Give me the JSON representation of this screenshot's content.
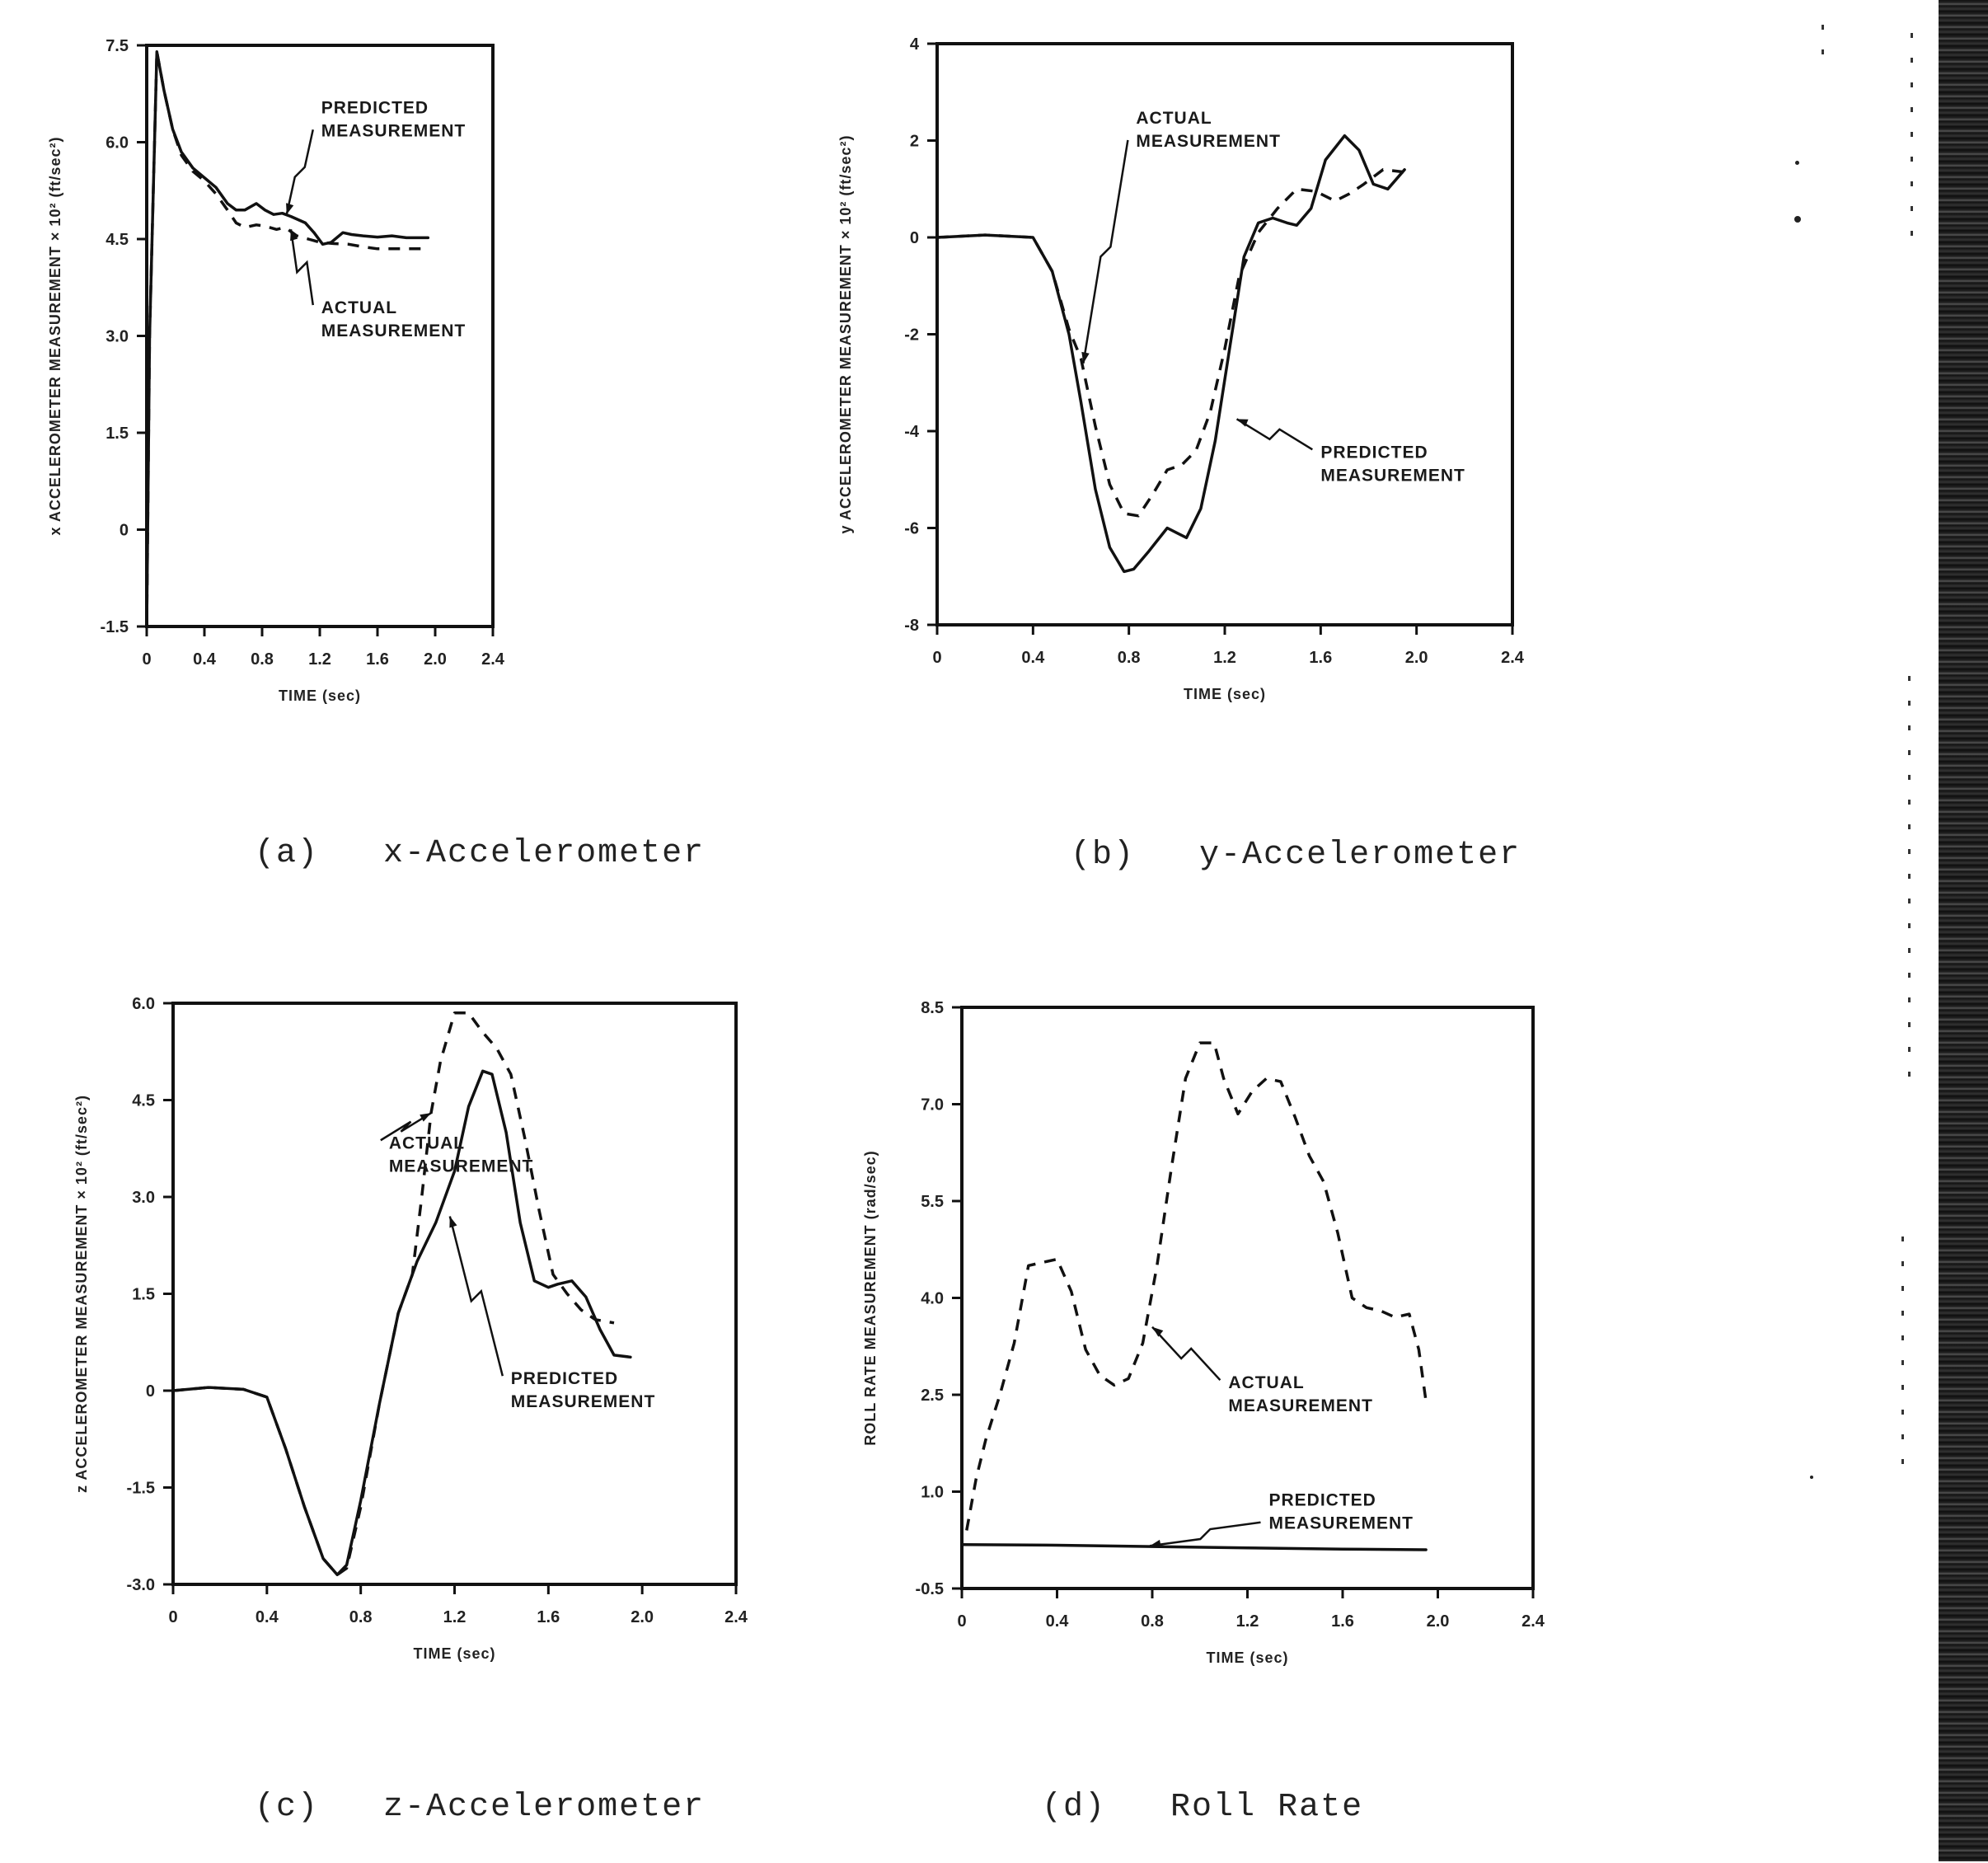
{
  "figure": {
    "captions": {
      "a": {
        "letter": "(a)",
        "title": "x-Accelerometer"
      },
      "b": {
        "letter": "(b)",
        "title": "y-Accelerometer"
      },
      "c": {
        "letter": "(c)",
        "title": "z-Accelerometer"
      },
      "d": {
        "letter": "(d)",
        "title": "Roll Rate"
      }
    }
  },
  "chart_data": [
    {
      "id": "a",
      "type": "line",
      "title": "(a) x-Accelerometer",
      "xlabel": "TIME (sec)",
      "ylabel": "x ACCELEROMETER MEASUREMENT × 10² (ft/sec²)",
      "xlim": [
        0,
        2.4
      ],
      "ylim": [
        -1.5,
        7.5
      ],
      "xticks": [
        0,
        0.4,
        0.8,
        1.2,
        1.6,
        2.0,
        2.4
      ],
      "xtick_labels": [
        "0",
        "0.4",
        "0.8",
        "1.2",
        "1.6",
        "2.0",
        "2.4"
      ],
      "yticks": [
        -1.5,
        0,
        1.5,
        3.0,
        4.5,
        6.0,
        7.5
      ],
      "ytick_labels": [
        "-1.5",
        "0",
        "1.5",
        "3.0",
        "4.5",
        "6.0",
        "7.5"
      ],
      "grid": false,
      "legend": "annotations",
      "series": [
        {
          "name": "PREDICTED MEASUREMENT",
          "style": "solid",
          "x": [
            0,
            0.02,
            0.07,
            0.12,
            0.18,
            0.24,
            0.32,
            0.4,
            0.48,
            0.56,
            0.62,
            0.68,
            0.76,
            0.82,
            0.88,
            0.94,
            1.0,
            1.1,
            1.16,
            1.22,
            1.28,
            1.36,
            1.42,
            1.5,
            1.6,
            1.7,
            1.8,
            1.95
          ],
          "y": [
            -1.5,
            3.0,
            7.4,
            6.8,
            6.2,
            5.85,
            5.6,
            5.45,
            5.3,
            5.05,
            4.95,
            4.95,
            5.05,
            4.95,
            4.88,
            4.9,
            4.85,
            4.75,
            4.6,
            4.42,
            4.45,
            4.6,
            4.57,
            4.55,
            4.53,
            4.55,
            4.52,
            4.52
          ]
        },
        {
          "name": "ACTUAL MEASUREMENT",
          "style": "dashed",
          "x": [
            0,
            0.02,
            0.07,
            0.12,
            0.18,
            0.24,
            0.32,
            0.4,
            0.48,
            0.56,
            0.62,
            0.68,
            0.76,
            0.82,
            0.9,
            0.96,
            1.04,
            1.12,
            1.2,
            1.3,
            1.4,
            1.5,
            1.6,
            1.7,
            1.8,
            1.95
          ],
          "y": [
            -1.5,
            3.0,
            7.4,
            6.8,
            6.2,
            5.8,
            5.55,
            5.4,
            5.2,
            4.95,
            4.75,
            4.68,
            4.72,
            4.7,
            4.65,
            4.68,
            4.55,
            4.5,
            4.45,
            4.43,
            4.42,
            4.38,
            4.35,
            4.35,
            4.35,
            4.35
          ]
        }
      ],
      "annotations": [
        {
          "text": [
            "PREDICTED",
            "MEASUREMENT"
          ],
          "x": 1.21,
          "y": 6.45,
          "arrow_to": [
            0.97,
            4.88
          ]
        },
        {
          "text": [
            "ACTUAL",
            "MEASUREMENT"
          ],
          "x": 1.21,
          "y": 3.35,
          "arrow_to": [
            1.0,
            4.65
          ]
        }
      ]
    },
    {
      "id": "b",
      "type": "line",
      "title": "(b) y-Accelerometer",
      "xlabel": "TIME (sec)",
      "ylabel": "y ACCELEROMETER MEASUREMENT × 10² (ft/sec²)",
      "xlim": [
        0,
        2.4
      ],
      "ylim": [
        -8,
        4
      ],
      "xticks": [
        0,
        0.4,
        0.8,
        1.2,
        1.6,
        2.0,
        2.4
      ],
      "xtick_labels": [
        "0",
        "0.4",
        "0.8",
        "1.2",
        "1.6",
        "2.0",
        "2.4"
      ],
      "yticks": [
        -8,
        -6,
        -4,
        -2,
        0,
        2,
        4
      ],
      "ytick_labels": [
        "-8",
        "-6",
        "-4",
        "-2",
        "0",
        "2",
        "4"
      ],
      "grid": false,
      "legend": "annotations",
      "series": [
        {
          "name": "PREDICTED MEASUREMENT",
          "style": "solid",
          "x": [
            0,
            0.2,
            0.4,
            0.48,
            0.55,
            0.6,
            0.66,
            0.72,
            0.78,
            0.82,
            0.88,
            0.96,
            1.0,
            1.04,
            1.1,
            1.16,
            1.22,
            1.28,
            1.34,
            1.4,
            1.46,
            1.5,
            1.56,
            1.62,
            1.7,
            1.76,
            1.82,
            1.88,
            1.95
          ],
          "y": [
            0,
            0.05,
            0,
            -0.7,
            -2.0,
            -3.4,
            -5.2,
            -6.4,
            -6.9,
            -6.85,
            -6.5,
            -6.0,
            -6.1,
            -6.2,
            -5.6,
            -4.2,
            -2.3,
            -0.4,
            0.3,
            0.4,
            0.3,
            0.25,
            0.6,
            1.6,
            2.1,
            1.8,
            1.1,
            1.0,
            1.4
          ]
        },
        {
          "name": "ACTUAL MEASUREMENT",
          "style": "dashed",
          "x": [
            0,
            0.2,
            0.4,
            0.48,
            0.55,
            0.6,
            0.66,
            0.72,
            0.78,
            0.84,
            0.9,
            0.96,
            1.02,
            1.08,
            1.14,
            1.2,
            1.26,
            1.34,
            1.42,
            1.5,
            1.58,
            1.66,
            1.72,
            1.78,
            1.86,
            1.95
          ],
          "y": [
            0,
            0.05,
            0,
            -0.7,
            -1.9,
            -2.5,
            -3.9,
            -5.1,
            -5.7,
            -5.75,
            -5.3,
            -4.8,
            -4.7,
            -4.4,
            -3.6,
            -2.3,
            -0.8,
            0.1,
            0.6,
            1.0,
            0.95,
            0.75,
            0.9,
            1.1,
            1.4,
            1.35
          ]
        }
      ],
      "annotations": [
        {
          "text": [
            "ACTUAL",
            "MEASUREMENT"
          ],
          "x": 0.83,
          "y": 2.35,
          "arrow_to": [
            0.61,
            -2.6
          ]
        },
        {
          "text": [
            "PREDICTED",
            "MEASUREMENT"
          ],
          "x": 1.6,
          "y": -4.55,
          "arrow_to": [
            1.25,
            -3.75
          ]
        }
      ]
    },
    {
      "id": "c",
      "type": "line",
      "title": "(c) z-Accelerometer",
      "xlabel": "TIME (sec)",
      "ylabel": "z ACCELEROMETER MEASUREMENT × 10² (ft/sec²)",
      "xlim": [
        0,
        2.4
      ],
      "ylim": [
        -3.0,
        6.0
      ],
      "xticks": [
        0,
        0.4,
        0.8,
        1.2,
        1.6,
        2.0,
        2.4
      ],
      "xtick_labels": [
        "0",
        "0.4",
        "0.8",
        "1.2",
        "1.6",
        "2.0",
        "2.4"
      ],
      "yticks": [
        -3.0,
        -1.5,
        0,
        1.5,
        3.0,
        4.5,
        6.0
      ],
      "ytick_labels": [
        "-3.0",
        "-1.5",
        "0",
        "1.5",
        "3.0",
        "4.5",
        "6.0"
      ],
      "grid": false,
      "legend": "annotations",
      "series": [
        {
          "name": "PREDICTED MEASUREMENT",
          "style": "solid",
          "x": [
            0,
            0.15,
            0.3,
            0.4,
            0.48,
            0.56,
            0.64,
            0.7,
            0.74,
            0.8,
            0.88,
            0.96,
            1.04,
            1.12,
            1.2,
            1.26,
            1.32,
            1.36,
            1.42,
            1.48,
            1.54,
            1.6,
            1.64,
            1.7,
            1.76,
            1.82,
            1.88,
            1.95
          ],
          "y": [
            0,
            0.05,
            0.02,
            -0.1,
            -0.9,
            -1.8,
            -2.6,
            -2.85,
            -2.7,
            -1.7,
            -0.2,
            1.2,
            2.0,
            2.6,
            3.4,
            4.4,
            4.95,
            4.9,
            4.0,
            2.6,
            1.7,
            1.6,
            1.65,
            1.7,
            1.45,
            0.95,
            0.55,
            0.52
          ]
        },
        {
          "name": "ACTUAL MEASUREMENT",
          "style": "dashed",
          "x": [
            0,
            0.15,
            0.3,
            0.4,
            0.48,
            0.56,
            0.64,
            0.7,
            0.74,
            0.8,
            0.88,
            0.96,
            1.02,
            1.06,
            1.1,
            1.14,
            1.2,
            1.26,
            1.32,
            1.38,
            1.44,
            1.5,
            1.56,
            1.62,
            1.68,
            1.74,
            1.8,
            1.88
          ],
          "y": [
            0,
            0.05,
            0.02,
            -0.1,
            -0.9,
            -1.8,
            -2.6,
            -2.85,
            -2.75,
            -1.8,
            -0.2,
            1.2,
            1.8,
            3.0,
            4.3,
            5.1,
            5.85,
            5.85,
            5.55,
            5.3,
            4.9,
            3.9,
            2.8,
            1.8,
            1.5,
            1.25,
            1.1,
            1.05
          ]
        }
      ],
      "annotations": [
        {
          "text": [
            "ACTUAL",
            "MEASUREMENT"
          ],
          "x": 0.92,
          "y": 3.75,
          "arrow_to": [
            1.1,
            4.3
          ]
        },
        {
          "text": [
            "PREDICTED",
            "MEASUREMENT"
          ],
          "x": 1.44,
          "y": 0.1,
          "arrow_to": [
            1.18,
            2.7
          ]
        }
      ]
    },
    {
      "id": "d",
      "type": "line",
      "title": "(d) Roll Rate",
      "xlabel": "TIME (sec)",
      "ylabel": "ROLL RATE MEASUREMENT (rad/sec)",
      "xlim": [
        0,
        2.4
      ],
      "ylim": [
        -0.5,
        8.5
      ],
      "xticks": [
        0,
        0.4,
        0.8,
        1.2,
        1.6,
        2.0,
        2.4
      ],
      "xtick_labels": [
        "0",
        "0.4",
        "0.8",
        "1.2",
        "1.6",
        "2.0",
        "2.4"
      ],
      "yticks": [
        -0.5,
        1.0,
        2.5,
        4.0,
        5.5,
        7.0,
        8.5
      ],
      "ytick_labels": [
        "-0.5",
        "1.0",
        "2.5",
        "4.0",
        "5.5",
        "7.0",
        "8.5"
      ],
      "grid": false,
      "legend": "annotations",
      "series": [
        {
          "name": "PREDICTED MEASUREMENT",
          "style": "solid",
          "x": [
            0,
            0.4,
            0.8,
            1.2,
            1.6,
            1.95
          ],
          "y": [
            0.18,
            0.17,
            0.15,
            0.13,
            0.11,
            0.1
          ]
        },
        {
          "name": "ACTUAL MEASUREMENT",
          "style": "dashed",
          "x": [
            0.02,
            0.06,
            0.1,
            0.16,
            0.22,
            0.28,
            0.34,
            0.4,
            0.46,
            0.52,
            0.58,
            0.64,
            0.7,
            0.76,
            0.82,
            0.88,
            0.94,
            1.0,
            1.06,
            1.1,
            1.16,
            1.22,
            1.28,
            1.34,
            1.4,
            1.46,
            1.52,
            1.58,
            1.64,
            1.7,
            1.76,
            1.82,
            1.88,
            1.92,
            1.95
          ],
          "y": [
            0.4,
            1.2,
            1.8,
            2.5,
            3.3,
            4.5,
            4.55,
            4.6,
            4.1,
            3.2,
            2.8,
            2.65,
            2.75,
            3.3,
            4.5,
            6.0,
            7.4,
            7.95,
            7.95,
            7.4,
            6.85,
            7.2,
            7.4,
            7.35,
            6.8,
            6.2,
            5.8,
            5.0,
            4.0,
            3.85,
            3.8,
            3.7,
            3.75,
            3.2,
            2.4
          ]
        }
      ],
      "annotations": [
        {
          "text": [
            "ACTUAL",
            "MEASUREMENT"
          ],
          "x": 1.12,
          "y": 2.6,
          "arrow_to": [
            0.8,
            3.55
          ]
        },
        {
          "text": [
            "PREDICTED",
            "MEASUREMENT"
          ],
          "x": 1.29,
          "y": 0.78,
          "arrow_to": [
            0.79,
            0.16
          ]
        }
      ]
    }
  ]
}
